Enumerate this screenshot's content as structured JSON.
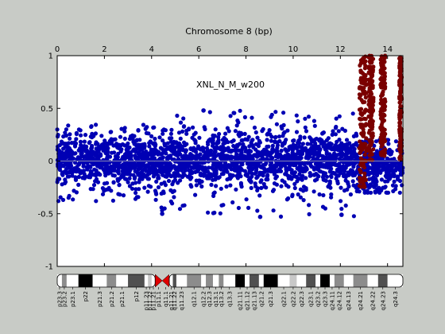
{
  "chart_data": {
    "type": "scatter",
    "title": "Chromosome 8 (bp)",
    "annotation": "XNL_N_M_w200",
    "x_axis_position": "top",
    "xlim": [
      0,
      14.65
    ],
    "ylim": [
      -1,
      1
    ],
    "x_ticks": [
      0,
      2,
      4,
      6,
      8,
      10,
      12,
      14
    ],
    "y_ticks": [
      1,
      0.5,
      0,
      -0.5,
      -1
    ],
    "x_tick_labels": [
      "0",
      "2",
      "4",
      "6",
      "8",
      "10",
      "12",
      "14"
    ],
    "y_tick_labels": [
      "1",
      "0.5",
      "0",
      "-0.5",
      "-1"
    ],
    "baseline_y": 0,
    "colors": {
      "background": "#c8cbc6",
      "plot_area": "#ffffff",
      "normal_points": "#0000b4",
      "amplified_points": "#7a0000",
      "baseline": "#9a9a9a",
      "centromere": "#e00000"
    },
    "series": [
      {
        "color": "#0000b4",
        "density_profile": [
          {
            "x_start": 0.0,
            "x_end": 4.4,
            "y_core": [
              -0.2,
              0.2
            ],
            "y_extreme": [
              -0.38,
              0.35
            ]
          },
          {
            "x_start": 4.4,
            "x_end": 4.6,
            "y_core": [
              -0.45,
              0.25
            ],
            "y_extreme": [
              -0.5,
              0.3
            ]
          },
          {
            "x_start": 4.6,
            "x_end": 12.7,
            "y_core": [
              -0.22,
              0.22
            ],
            "y_extreme": [
              -0.53,
              0.48
            ]
          },
          {
            "x_start": 12.7,
            "x_end": 14.65,
            "y_core": [
              -0.25,
              0.15
            ],
            "y_extreme": [
              -0.3,
              0.2
            ]
          }
        ],
        "outliers": [
          {
            "x": 4.45,
            "y": -0.5
          },
          {
            "x": 6.2,
            "y": 0.48
          },
          {
            "x": 8.6,
            "y": -0.53
          },
          {
            "x": 12.05,
            "y": -0.51
          }
        ]
      },
      {
        "color": "#7a0000",
        "amplified_segments": [
          {
            "x_start": 12.8,
            "x_end": 13.1,
            "y_range": [
              -0.25,
              1.0
            ]
          },
          {
            "x_start": 13.2,
            "x_end": 13.4,
            "y_range": [
              0.0,
              1.0
            ]
          },
          {
            "x_start": 13.7,
            "x_end": 13.9,
            "y_range": [
              0.05,
              1.0
            ]
          },
          {
            "x_start": 14.5,
            "x_end": 14.6,
            "y_range": [
              0.0,
              1.0
            ]
          }
        ]
      }
    ],
    "ideogram": {
      "bands": [
        {
          "label": "p23.3",
          "x": 0.0,
          "w": 0.2,
          "stain": "gneg"
        },
        {
          "label": "p23.2",
          "x": 0.2,
          "w": 0.2,
          "stain": "gpos50"
        },
        {
          "label": "p23.1",
          "x": 0.4,
          "w": 0.5,
          "stain": "gneg"
        },
        {
          "label": "p22",
          "x": 0.9,
          "w": 0.6,
          "stain": "gpos100"
        },
        {
          "label": "p21.3",
          "x": 1.5,
          "w": 0.6,
          "stain": "gneg"
        },
        {
          "label": "p21.2",
          "x": 2.1,
          "w": 0.4,
          "stain": "gpos50"
        },
        {
          "label": "p21.1",
          "x": 2.5,
          "w": 0.5,
          "stain": "gneg"
        },
        {
          "label": "p12",
          "x": 3.0,
          "w": 0.7,
          "stain": "gpos75"
        },
        {
          "label": "p11.23",
          "x": 3.7,
          "w": 0.15,
          "stain": "gneg"
        },
        {
          "label": "p11.22",
          "x": 3.85,
          "w": 0.15,
          "stain": "gpos25"
        },
        {
          "label": "p11.21",
          "x": 4.0,
          "w": 0.15,
          "stain": "gneg"
        },
        {
          "label": "p11.1",
          "x": 4.15,
          "w": 0.3,
          "stain": "acen"
        },
        {
          "label": "q11.1",
          "x": 4.45,
          "w": 0.3,
          "stain": "acen"
        },
        {
          "label": "q11.21",
          "x": 4.75,
          "w": 0.15,
          "stain": "gneg"
        },
        {
          "label": "q11.22",
          "x": 4.9,
          "w": 0.15,
          "stain": "gpos75"
        },
        {
          "label": "q11.23",
          "x": 5.05,
          "w": 0.45,
          "stain": "gneg"
        },
        {
          "label": "q12.1",
          "x": 5.5,
          "w": 0.6,
          "stain": "gpos50"
        },
        {
          "label": "q12.2",
          "x": 6.1,
          "w": 0.2,
          "stain": "gneg"
        },
        {
          "label": "q12.3",
          "x": 6.3,
          "w": 0.3,
          "stain": "gpos50"
        },
        {
          "label": "q13.1",
          "x": 6.6,
          "w": 0.25,
          "stain": "gneg"
        },
        {
          "label": "q13.2",
          "x": 6.85,
          "w": 0.2,
          "stain": "gpos50"
        },
        {
          "label": "q13.3",
          "x": 7.05,
          "w": 0.5,
          "stain": "gneg"
        },
        {
          "label": "q21.11",
          "x": 7.55,
          "w": 0.4,
          "stain": "gpos100"
        },
        {
          "label": "q21.12",
          "x": 7.95,
          "w": 0.2,
          "stain": "gneg"
        },
        {
          "label": "q21.13",
          "x": 8.15,
          "w": 0.4,
          "stain": "gpos75"
        },
        {
          "label": "q21.2",
          "x": 8.55,
          "w": 0.2,
          "stain": "gneg"
        },
        {
          "label": "q21.3",
          "x": 8.75,
          "w": 0.6,
          "stain": "gpos100"
        },
        {
          "label": "q22.1",
          "x": 9.35,
          "w": 0.5,
          "stain": "gneg"
        },
        {
          "label": "q22.2",
          "x": 9.85,
          "w": 0.3,
          "stain": "gpos25"
        },
        {
          "label": "q22.3",
          "x": 10.15,
          "w": 0.4,
          "stain": "gneg"
        },
        {
          "label": "q23.1",
          "x": 10.55,
          "w": 0.4,
          "stain": "gpos75"
        },
        {
          "label": "q23.2",
          "x": 10.95,
          "w": 0.2,
          "stain": "gneg"
        },
        {
          "label": "q23.3",
          "x": 11.15,
          "w": 0.4,
          "stain": "gpos100"
        },
        {
          "label": "q24.11",
          "x": 11.55,
          "w": 0.2,
          "stain": "gneg"
        },
        {
          "label": "q24.12",
          "x": 11.75,
          "w": 0.4,
          "stain": "gpos50"
        },
        {
          "label": "q24.13",
          "x": 12.15,
          "w": 0.4,
          "stain": "gneg"
        },
        {
          "label": "q24.21",
          "x": 12.55,
          "w": 0.6,
          "stain": "gpos50"
        },
        {
          "label": "q24.22",
          "x": 13.15,
          "w": 0.45,
          "stain": "gneg"
        },
        {
          "label": "q24.23",
          "x": 13.6,
          "w": 0.4,
          "stain": "gpos75"
        },
        {
          "label": "q24.3",
          "x": 14.0,
          "w": 0.65,
          "stain": "gneg"
        }
      ],
      "stain_colors": {
        "gneg": "#ffffff",
        "gpos25": "#c8c8c8",
        "gpos50": "#8c8c8c",
        "gpos75": "#505050",
        "gpos100": "#000000",
        "acen": "#e00000"
      }
    }
  }
}
